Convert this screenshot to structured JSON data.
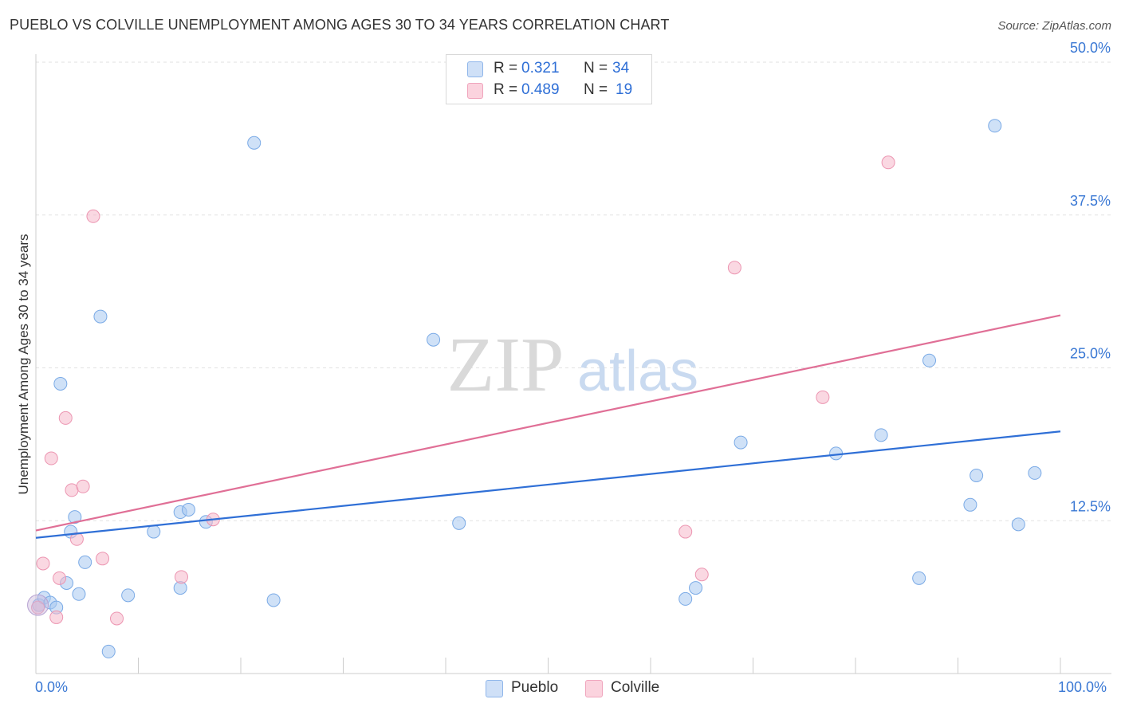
{
  "title": "PUEBLO VS COLVILLE UNEMPLOYMENT AMONG AGES 30 TO 34 YEARS CORRELATION CHART",
  "source": "Source: ZipAtlas.com",
  "watermark": {
    "zip": "ZIP",
    "atlas": "atlas"
  },
  "legend": {
    "rows": [
      {
        "r_label": "R =",
        "r_value": "0.321",
        "n_label": "N =",
        "n_value": "34",
        "color": "#a8c8f0"
      },
      {
        "r_label": "R =",
        "r_value": "0.489",
        "n_label": "N =",
        "n_value": "19",
        "color": "#f6b8ca"
      }
    ]
  },
  "chart_data": {
    "type": "scatter",
    "title": "PUEBLO VS COLVILLE UNEMPLOYMENT AMONG AGES 30 TO 34 YEARS CORRELATION CHART",
    "xlabel": "",
    "ylabel": "Unemployment Among Ages 30 to 34 years",
    "xlim": [
      0,
      100
    ],
    "ylim": [
      0,
      50
    ],
    "x_tick_labels": [
      "0.0%",
      "100.0%"
    ],
    "y_ticks": [
      {
        "value": 12.5,
        "label": "12.5%"
      },
      {
        "value": 25,
        "label": "25.0%"
      },
      {
        "value": 37.5,
        "label": "37.5%"
      },
      {
        "value": 50,
        "label": "50.0%"
      }
    ],
    "grid": true,
    "legend_position": "top-center",
    "series": [
      {
        "name": "Pueblo",
        "color": "#a8c8f0",
        "stroke": "#7aaae6",
        "trend_color": "#2f6fd6",
        "trend": {
          "x": [
            0,
            100
          ],
          "y": [
            11.1,
            19.8
          ]
        },
        "points": [
          [
            0.3,
            5.6
          ],
          [
            0.8,
            6.2
          ],
          [
            1.4,
            5.8
          ],
          [
            2.0,
            5.4
          ],
          [
            2.4,
            23.7
          ],
          [
            3.0,
            7.4
          ],
          [
            3.4,
            11.6
          ],
          [
            3.8,
            12.8
          ],
          [
            4.2,
            6.5
          ],
          [
            4.8,
            9.1
          ],
          [
            6.3,
            29.2
          ],
          [
            7.1,
            1.8
          ],
          [
            9.0,
            6.4
          ],
          [
            11.5,
            11.6
          ],
          [
            14.1,
            7.0
          ],
          [
            14.1,
            13.2
          ],
          [
            14.9,
            13.4
          ],
          [
            16.6,
            12.4
          ],
          [
            21.3,
            43.4
          ],
          [
            23.2,
            6.0
          ],
          [
            38.8,
            27.3
          ],
          [
            41.3,
            12.3
          ],
          [
            63.4,
            6.1
          ],
          [
            64.4,
            7.0
          ],
          [
            68.8,
            18.9
          ],
          [
            78.1,
            18.0
          ],
          [
            82.5,
            19.5
          ],
          [
            86.2,
            7.8
          ],
          [
            87.2,
            25.6
          ],
          [
            91.2,
            13.8
          ],
          [
            91.8,
            16.2
          ],
          [
            93.6,
            44.8
          ],
          [
            95.9,
            12.2
          ],
          [
            97.5,
            16.4
          ]
        ]
      },
      {
        "name": "Colville",
        "color": "#f6b8ca",
        "stroke": "#ec95b1",
        "trend_color": "#e06f96",
        "trend": {
          "x": [
            0,
            100
          ],
          "y": [
            11.7,
            29.3
          ]
        },
        "points": [
          [
            0.2,
            5.4
          ],
          [
            0.7,
            9.0
          ],
          [
            1.5,
            17.6
          ],
          [
            2.0,
            4.6
          ],
          [
            2.3,
            7.8
          ],
          [
            2.9,
            20.9
          ],
          [
            3.5,
            15.0
          ],
          [
            4.0,
            11.0
          ],
          [
            4.6,
            15.3
          ],
          [
            5.6,
            37.4
          ],
          [
            6.5,
            9.4
          ],
          [
            7.9,
            4.5
          ],
          [
            14.2,
            7.9
          ],
          [
            17.3,
            12.6
          ],
          [
            63.4,
            11.6
          ],
          [
            65.0,
            8.1
          ],
          [
            68.2,
            33.2
          ],
          [
            76.8,
            22.6
          ],
          [
            83.2,
            41.8
          ]
        ]
      }
    ]
  }
}
